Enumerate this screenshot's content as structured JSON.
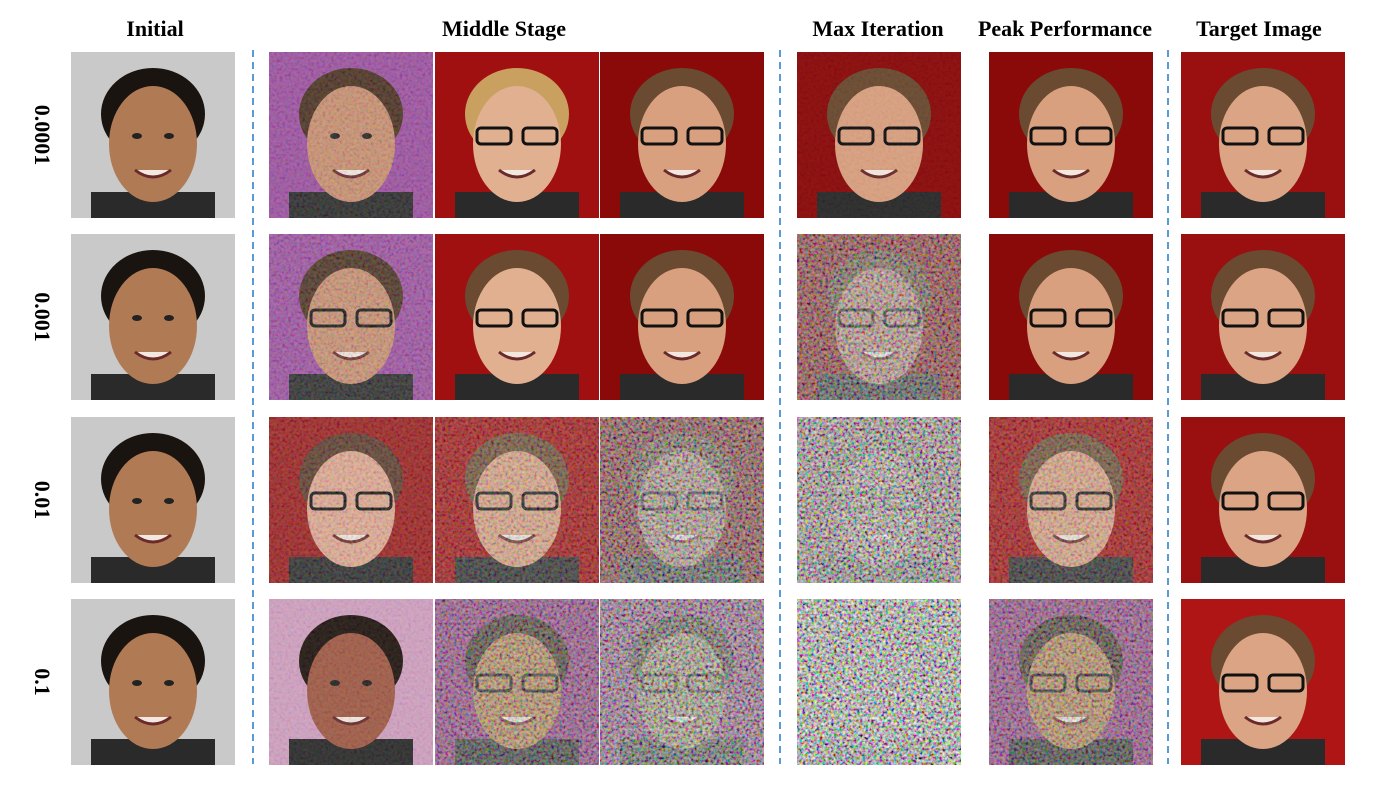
{
  "header": {
    "columns": [
      "Initial",
      "Middle Stage",
      "Max Iteration",
      "Peak Performance",
      "Target Image"
    ]
  },
  "rows": {
    "labels": [
      "0.0001",
      "0.001",
      "0.01",
      "0.1"
    ]
  }
}
